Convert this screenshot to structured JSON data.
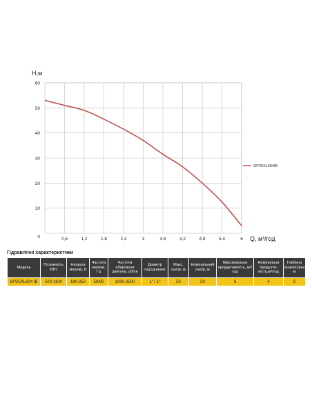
{
  "chart_data": {
    "type": "line",
    "xlabel": "Q, м³/год",
    "ylabel": "H,м",
    "xlim": [
      0,
      6
    ],
    "ylim": [
      0,
      60
    ],
    "x_ticks": [
      "0,6",
      "1,2",
      "1,8",
      "2,4",
      "3",
      "3,6",
      "4,2",
      "4,8",
      "5,4",
      "6"
    ],
    "y_ticks": [
      "10",
      "20",
      "30",
      "40",
      "50",
      "60"
    ],
    "origin_label": "0",
    "grid": true,
    "legend_position": "right",
    "series": [
      {
        "name": "OP25XL604IB",
        "color": "#c0504d",
        "x": [
          0,
          0.6,
          1.2,
          1.8,
          2.4,
          3.0,
          3.6,
          4.2,
          4.8,
          5.4,
          6.0
        ],
        "y": [
          53,
          51,
          49,
          45.5,
          41.5,
          37,
          31.5,
          26.5,
          20,
          12.5,
          3
        ]
      }
    ]
  },
  "table": {
    "title": "Гідравлічні характеристики",
    "headers": [
      "Модель",
      "Потужність Р,Вт",
      "Напруга мережі, В",
      "Частота мережі, Гц",
      "Частота обертання двигуна, об/хв",
      "Діаметр під'єднання",
      "Макс. напір, м",
      "Номінальний напір, м",
      "Максимальна продуктивність, м³/год",
      "Номінальна продукти-ність,м³/год",
      "Глибина всмоктування, м"
    ],
    "row": [
      "OP25XL604 IB",
      "500-1100",
      "180-250",
      "50/60",
      "1000-3500",
      "1\" / 1\"",
      "53",
      "30",
      "6",
      "4",
      "9"
    ],
    "header_color": "#3a3a3a",
    "row_color": "#f2c417"
  }
}
